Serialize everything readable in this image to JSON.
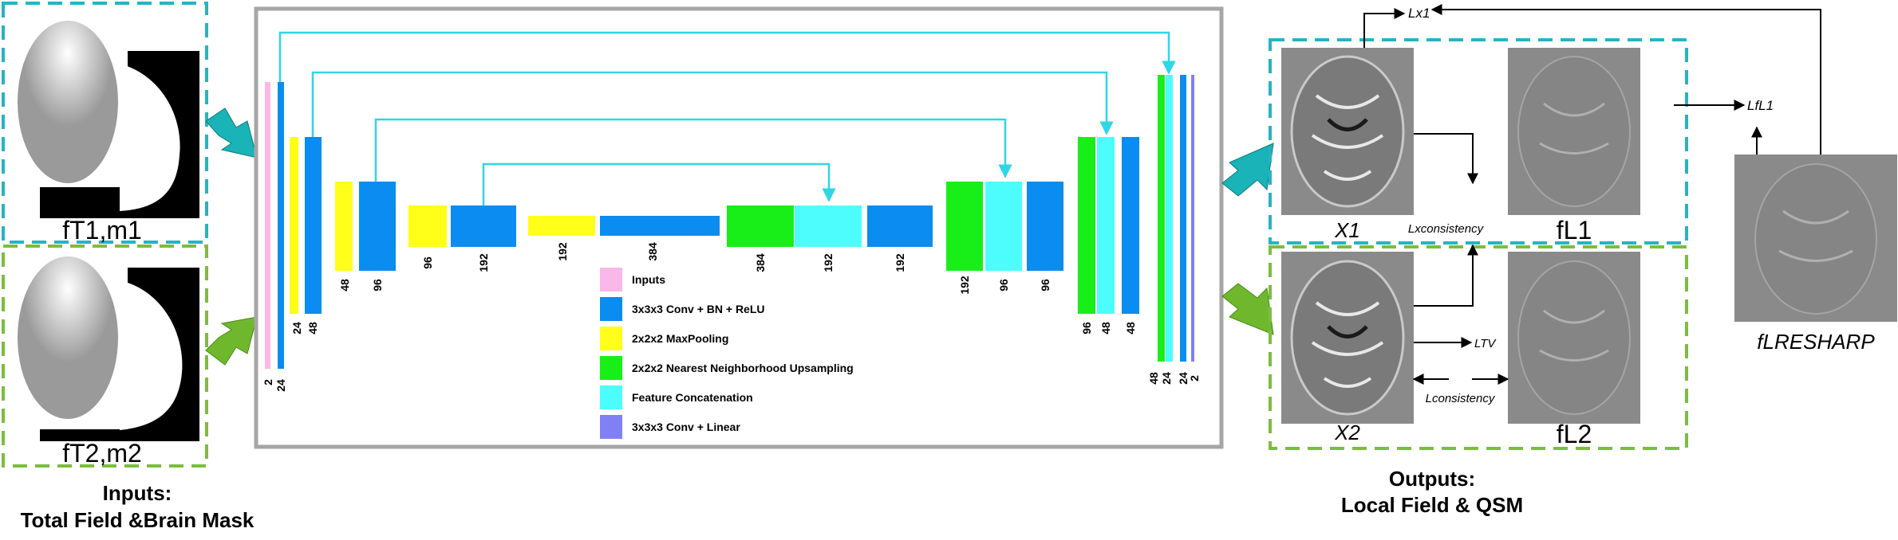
{
  "inputs": {
    "t1_label": "fT1,m1",
    "t2_label": "fT2,m2",
    "title_line1": "Inputs:",
    "title_line2": "Total Field &Brain Mask"
  },
  "network": {
    "channels_bottom": [
      "2",
      "24",
      "24",
      "48",
      "48",
      "96"
    ],
    "channels_mid": [
      "96",
      "192",
      "192",
      "384",
      "384",
      "192",
      "192",
      "192",
      "96",
      "96"
    ],
    "channels_right": [
      "96",
      "48",
      "48",
      "48",
      "24",
      "24",
      "2"
    ]
  },
  "legend": [
    {
      "label": "Inputs",
      "color": "#f9b8e8"
    },
    {
      "label": "3x3x3 Conv + BN + ReLU",
      "color": "#0a8cf0"
    },
    {
      "label": "2x2x2 MaxPooling",
      "color": "#ffff1a"
    },
    {
      "label": "2x2x2 Nearest Neighborhood Upsampling",
      "color": "#18ef18"
    },
    {
      "label": "Feature Concatenation",
      "color": "#4dfdfd"
    },
    {
      "label": "3x3x3 Conv + Linear",
      "color": "#8080f4"
    }
  ],
  "outputs": {
    "x1": "X1",
    "fl1": "fL1",
    "x2": "X2",
    "fl2": "fL2",
    "loss_x1": "Lx1",
    "loss_fl1": "LfL1",
    "loss_xconsistency": "Lxconsistency",
    "loss_tv": "LTV",
    "loss_consistency": "Lconsistency",
    "resharp": "fLRESHARP",
    "title_line1": "Outputs:",
    "title_line2": "Local Field & QSM"
  },
  "colors": {
    "teal_dash": "#24b4c4",
    "green_dash": "#7bbe3c",
    "arrow_teal": "#1ab3b7",
    "arrow_green": "#6fb82e",
    "cyan_line": "#2fd6e6",
    "box_gray": "#a6a6a6"
  }
}
